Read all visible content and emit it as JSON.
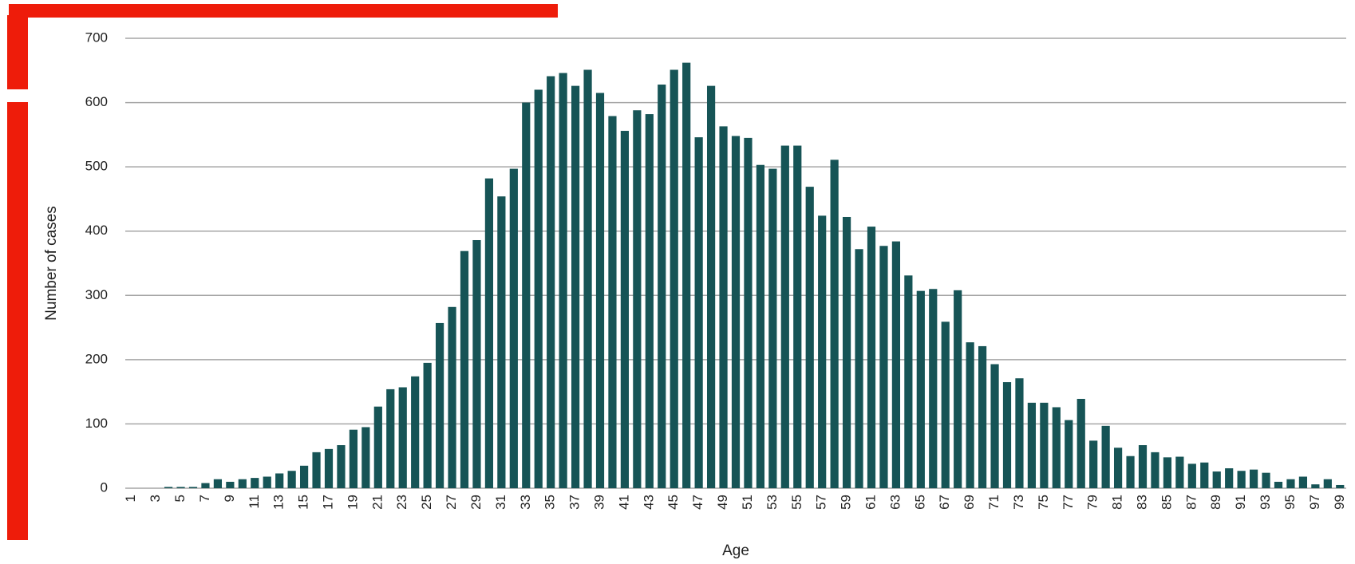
{
  "chart_data": {
    "type": "bar",
    "xlabel": "Age",
    "ylabel": "Number of cases",
    "categories": [
      1,
      null,
      3,
      null,
      5,
      null,
      7,
      null,
      9,
      null,
      11,
      null,
      13,
      null,
      15,
      null,
      17,
      null,
      19,
      null,
      21,
      null,
      23,
      null,
      25,
      null,
      27,
      null,
      29,
      null,
      31,
      null,
      33,
      null,
      35,
      null,
      37,
      null,
      39,
      null,
      41,
      null,
      43,
      null,
      45,
      null,
      47,
      null,
      49,
      null,
      51,
      null,
      53,
      null,
      55,
      null,
      57,
      null,
      59,
      null,
      61,
      null,
      63,
      null,
      65,
      null,
      67,
      null,
      69,
      null,
      71,
      null,
      73,
      null,
      75,
      null,
      77,
      null,
      79,
      null,
      81,
      null,
      83,
      null,
      85,
      null,
      87,
      null,
      89,
      null,
      91,
      null,
      93,
      null,
      95,
      null,
      97,
      null,
      99
    ],
    "values": [
      0,
      0,
      0,
      2,
      2,
      2,
      8,
      14,
      10,
      14,
      16,
      18,
      23,
      27,
      35,
      56,
      61,
      67,
      91,
      95,
      127,
      154,
      157,
      174,
      195,
      257,
      282,
      369,
      386,
      482,
      454,
      497,
      600,
      620,
      641,
      646,
      626,
      651,
      615,
      579,
      556,
      588,
      582,
      628,
      651,
      662,
      546,
      626,
      563,
      548,
      545,
      503,
      497,
      533,
      533,
      469,
      424,
      511,
      422,
      372,
      407,
      377,
      384,
      331,
      307,
      310,
      259,
      308,
      227,
      221,
      193,
      165,
      171,
      133,
      133,
      126,
      106,
      139,
      74,
      97,
      63,
      50,
      67,
      56,
      48,
      49,
      38,
      40,
      26,
      31,
      27,
      29,
      24,
      10,
      14,
      18,
      6,
      14,
      5
    ],
    "color": "#165456",
    "ylim": [
      0,
      700
    ],
    "yticks": [
      0,
      100,
      200,
      300,
      400,
      500,
      600,
      700
    ],
    "grid": true
  }
}
